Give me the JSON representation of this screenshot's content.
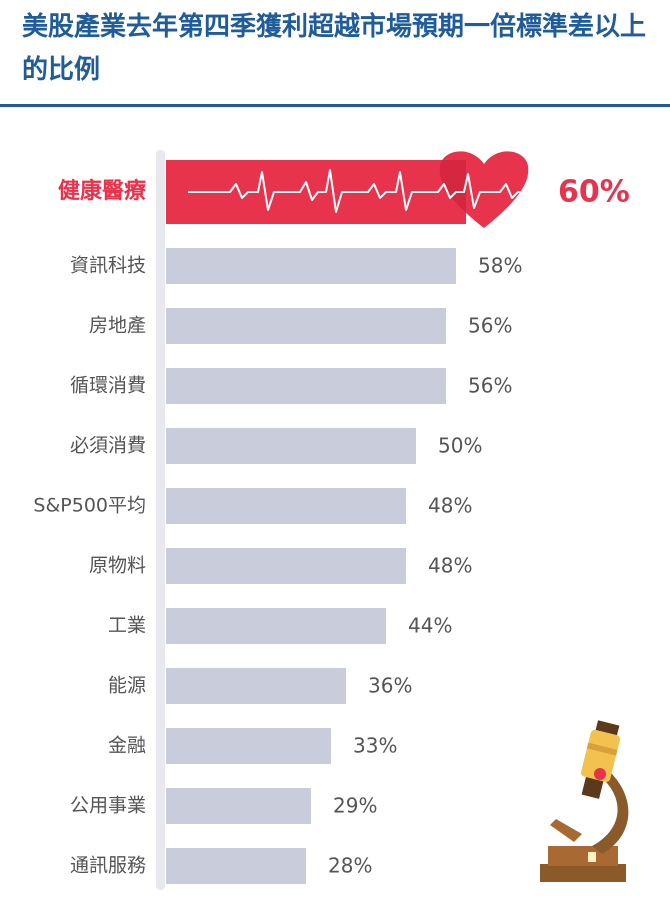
{
  "title": "美股產業去年第四季獲利超越市場預期一倍標準差以上的比例",
  "colors": {
    "title": "#1f5c99",
    "bar": "#c9ccda",
    "highlight": "#e8334d",
    "text": "#555555"
  },
  "chart_data": {
    "type": "bar",
    "orientation": "horizontal",
    "title": "美股產業去年第四季獲利超越市場預期一倍標準差以上的比例",
    "xlabel": "",
    "ylabel": "",
    "xlim": [
      0,
      60
    ],
    "grid": false,
    "legend": "none",
    "categories": [
      "健康醫療",
      "資訊科技",
      "房地產",
      "循環消費",
      "必須消費",
      "S&P500平均",
      "原物料",
      "工業",
      "能源",
      "金融",
      "公用事業",
      "通訊服務"
    ],
    "values": [
      60,
      58,
      56,
      56,
      50,
      48,
      48,
      44,
      36,
      33,
      29,
      28
    ],
    "labels": [
      "60%",
      "58%",
      "56%",
      "56%",
      "50%",
      "48%",
      "48%",
      "44%",
      "36%",
      "33%",
      "29%",
      "28%"
    ],
    "highlight": "健康醫療"
  }
}
